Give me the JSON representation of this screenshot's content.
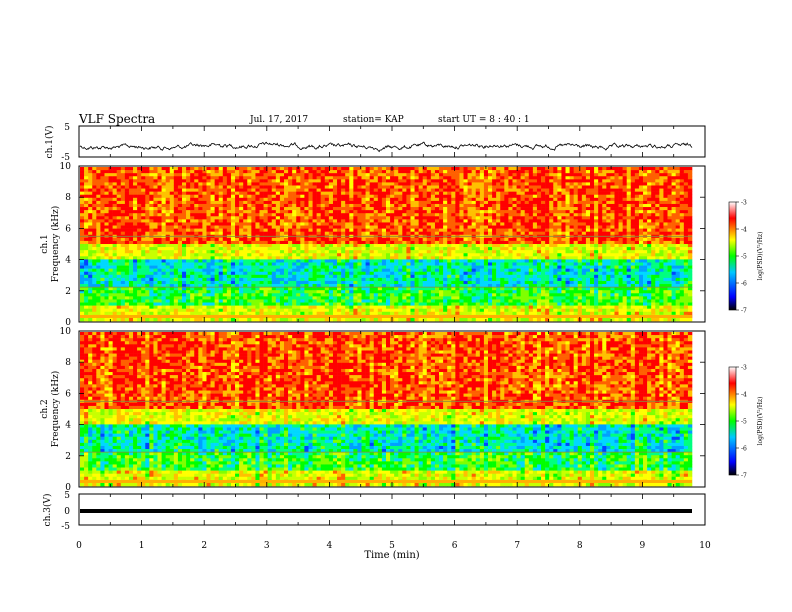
{
  "header": {
    "title": "VLF Spectra",
    "date": "Jul. 17, 2017",
    "station": "station= KAP",
    "start_ut": "start UT =  8 : 40 : 1"
  },
  "colorbar": {
    "label": "log(PSD)(V²/Hz)",
    "ticks": [
      -3,
      -4,
      -5,
      -6,
      -7
    ],
    "colors": [
      "#000000",
      "#0000ff",
      "#00c8ff",
      "#00ff00",
      "#ffff00",
      "#ff0000",
      "#ffffff"
    ]
  },
  "chart_data": [
    {
      "type": "line",
      "panel": "ch1-waveform",
      "ylabel": "ch.1(V)",
      "ylim": [
        -5,
        5
      ],
      "yticks": [
        -5,
        5
      ],
      "xlim": [
        0,
        10
      ],
      "series": [
        {
          "values": "noise around -1.5 V, amplitude ~1.5 V"
        }
      ]
    },
    {
      "type": "heatmap",
      "panel": "ch1-spectrogram",
      "ylabel": "ch.1\nFrequency (kHz)",
      "ylim": [
        0,
        10
      ],
      "yticks": [
        0,
        2,
        4,
        6,
        8,
        10
      ],
      "xlim": [
        0,
        10
      ],
      "zrange": [
        -7,
        -3
      ]
    },
    {
      "type": "heatmap",
      "panel": "ch2-spectrogram",
      "ylabel": "ch.2\nFrequency (kHz)",
      "ylim": [
        0,
        10
      ],
      "yticks": [
        0,
        2,
        4,
        6,
        8,
        10
      ],
      "xlim": [
        0,
        10
      ],
      "zrange": [
        -7,
        -3
      ]
    },
    {
      "type": "line",
      "panel": "ch3-waveform",
      "ylabel": "ch.3(V)",
      "ylim": [
        -5,
        5
      ],
      "yticks": [
        -5,
        5
      ],
      "xlim": [
        0,
        10
      ],
      "series": [
        {
          "values": "constant ~0 V"
        }
      ]
    }
  ],
  "xaxis": {
    "label": "Time (min)",
    "ticks": [
      "0",
      "1",
      "2",
      "3",
      "4",
      "5",
      "6",
      "7",
      "8",
      "9",
      "10"
    ]
  }
}
